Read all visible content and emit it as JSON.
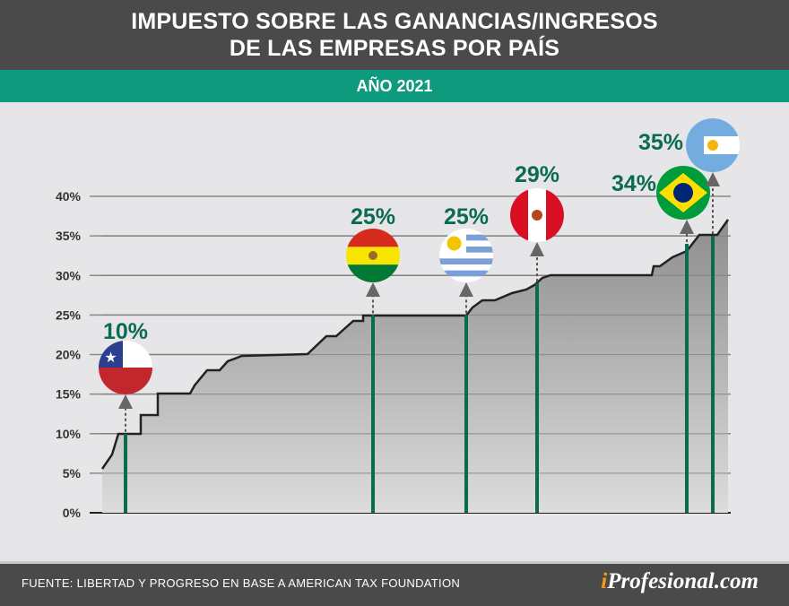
{
  "header": {
    "title_line1": "IMPUESTO SOBRE LAS GANANCIAS/INGRESOS",
    "title_line2": "DE LAS EMPRESAS POR PAÍS",
    "subtitle": "AÑO 2021"
  },
  "chart_data": {
    "type": "area",
    "title": "IMPUESTO SOBRE LAS GANANCIAS/INGRESOS DE LAS EMPRESAS POR PAÍS",
    "subtitle": "AÑO 2021",
    "ylim": [
      0,
      40
    ],
    "yticks": [
      "0%",
      "5%",
      "10%",
      "15%",
      "20%",
      "25%",
      "30%",
      "35%",
      "40%"
    ],
    "grid": true,
    "highlighted": [
      {
        "country": "Chile",
        "value": 10,
        "label": "10%",
        "flag": "chile-flag"
      },
      {
        "country": "Bolivia",
        "value": 25,
        "label": "25%",
        "flag": "bolivia-flag"
      },
      {
        "country": "Uruguay",
        "value": 25,
        "label": "25%",
        "flag": "uruguay-flag"
      },
      {
        "country": "Perú",
        "value": 29,
        "label": "29%",
        "flag": "peru-flag"
      },
      {
        "country": "Brasil",
        "value": 34,
        "label": "34%",
        "flag": "brazil-flag"
      },
      {
        "country": "Argentina",
        "value": 35,
        "label": "35%",
        "flag": "argentina-flag"
      }
    ],
    "colors": {
      "area": "#9a9898",
      "line": "#222222",
      "stem": "#0b6b50",
      "accent": "#0e9a7c"
    }
  },
  "footer": {
    "source": "FUENTE: LIBERTAD Y PROGRESO EN BASE A AMERICAN TAX FOUNDATION",
    "logo_i": "i",
    "logo_rest": "Profesional.com"
  }
}
